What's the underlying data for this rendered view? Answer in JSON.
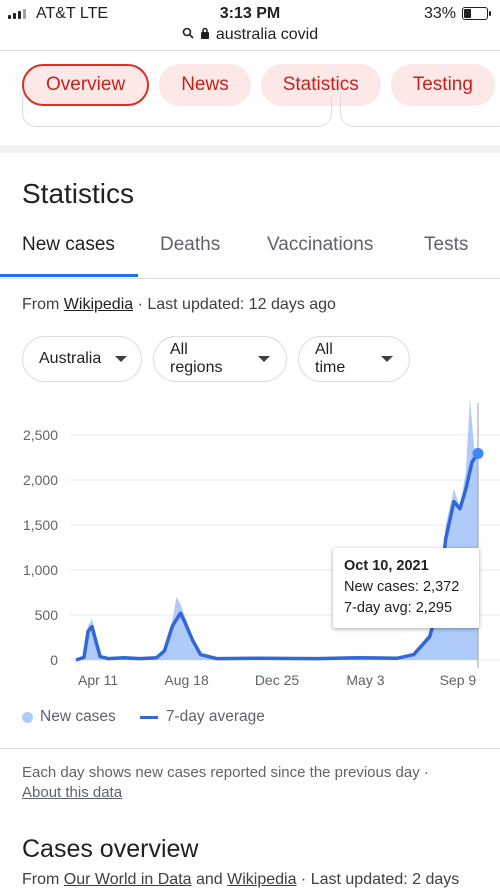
{
  "status": {
    "carrier": "AT&T  LTE",
    "time": "3:13 PM",
    "battery": "33%"
  },
  "url": {
    "query": "australia covid"
  },
  "chips": [
    "Overview",
    "News",
    "Statistics",
    "Testing"
  ],
  "section_title": "Statistics",
  "tabs": [
    "New cases",
    "Deaths",
    "Vaccinations",
    "Tests"
  ],
  "source": {
    "prefix": "From ",
    "link": "Wikipedia",
    "suffix": " · Last updated: 12 days ago"
  },
  "dropdowns": [
    "Australia",
    "All regions",
    "All time"
  ],
  "chart_data": {
    "type": "area",
    "title": "",
    "xlabel": "",
    "ylabel": "",
    "yticks": [
      "2,500",
      "2,000",
      "1,500",
      "1,000",
      "500",
      "0"
    ],
    "xticks": [
      "Apr 11",
      "Aug 18",
      "Dec 25",
      "May 3",
      "Sep 9"
    ],
    "ylim": [
      0,
      2700
    ],
    "grid": true,
    "series": [
      {
        "name": "New cases",
        "type": "area",
        "color": "#aecbfa",
        "points": [
          [
            0,
            0
          ],
          [
            0.02,
            40
          ],
          [
            0.03,
            380
          ],
          [
            0.04,
            460
          ],
          [
            0.05,
            250
          ],
          [
            0.06,
            60
          ],
          [
            0.08,
            20
          ],
          [
            0.12,
            30
          ],
          [
            0.16,
            20
          ],
          [
            0.2,
            30
          ],
          [
            0.22,
            120
          ],
          [
            0.24,
            450
          ],
          [
            0.25,
            700
          ],
          [
            0.26,
            620
          ],
          [
            0.27,
            500
          ],
          [
            0.29,
            250
          ],
          [
            0.31,
            80
          ],
          [
            0.35,
            20
          ],
          [
            0.45,
            25
          ],
          [
            0.6,
            20
          ],
          [
            0.7,
            30
          ],
          [
            0.8,
            25
          ],
          [
            0.84,
            80
          ],
          [
            0.88,
            300
          ],
          [
            0.9,
            700
          ],
          [
            0.92,
            1500
          ],
          [
            0.94,
            1900
          ],
          [
            0.955,
            1700
          ],
          [
            0.97,
            2100
          ],
          [
            0.98,
            2900
          ],
          [
            0.99,
            2372
          ],
          [
            1.0,
            2200
          ]
        ]
      },
      {
        "name": "7-day average",
        "type": "line",
        "color": "#3367d6",
        "points": [
          [
            0,
            0
          ],
          [
            0.02,
            30
          ],
          [
            0.03,
            320
          ],
          [
            0.04,
            370
          ],
          [
            0.05,
            200
          ],
          [
            0.06,
            40
          ],
          [
            0.08,
            15
          ],
          [
            0.12,
            25
          ],
          [
            0.16,
            15
          ],
          [
            0.2,
            25
          ],
          [
            0.22,
            100
          ],
          [
            0.24,
            380
          ],
          [
            0.26,
            520
          ],
          [
            0.27,
            430
          ],
          [
            0.29,
            220
          ],
          [
            0.31,
            60
          ],
          [
            0.35,
            15
          ],
          [
            0.45,
            20
          ],
          [
            0.6,
            15
          ],
          [
            0.7,
            25
          ],
          [
            0.8,
            20
          ],
          [
            0.84,
            60
          ],
          [
            0.88,
            260
          ],
          [
            0.9,
            600
          ],
          [
            0.92,
            1350
          ],
          [
            0.94,
            1760
          ],
          [
            0.955,
            1680
          ],
          [
            0.97,
            1900
          ],
          [
            0.985,
            2200
          ],
          [
            1.0,
            2295
          ]
        ]
      }
    ],
    "tooltip": {
      "date": "Oct 10, 2021",
      "new_cases": "New cases: 2,372",
      "avg": "7-day avg: 2,295"
    }
  },
  "legend": {
    "new_cases": "New cases",
    "avg": "7-day average"
  },
  "note": {
    "text": "Each day shows new cases reported since the previous day  ·",
    "link": "About this data"
  },
  "overview": {
    "title": "Cases overview",
    "src_prefix": "From ",
    "src_link1": "Our World in Data",
    "src_and": " and ",
    "src_link2": "Wikipedia",
    "src_suffix": " · Last updated: 2 days"
  }
}
